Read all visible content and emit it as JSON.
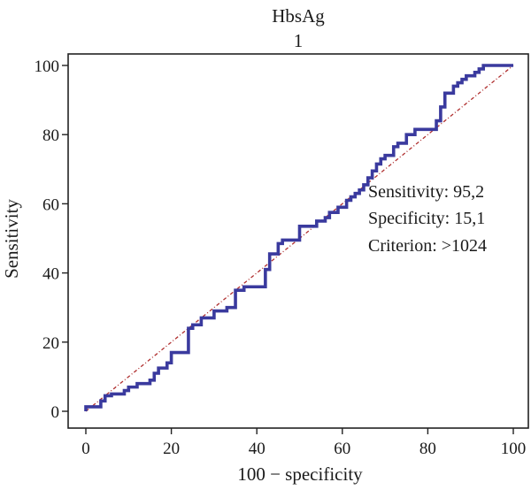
{
  "chart_data": {
    "type": "line",
    "title": "HbsAg",
    "subtitle": "1",
    "xlabel": "100 − specificity",
    "ylabel": "Sensitivity",
    "xlim": [
      0,
      100
    ],
    "ylim": [
      0,
      100
    ],
    "x_ticks": [
      "0",
      "20",
      "40",
      "60",
      "80",
      "100"
    ],
    "y_ticks": [
      "0",
      "20",
      "40",
      "60",
      "80",
      "100"
    ],
    "grid": false,
    "colors": {
      "roc": "#3a3a9e",
      "diagonal": "#b03030",
      "axis": "#222222"
    },
    "series": [
      {
        "kind": "roc-step",
        "points": [
          [
            0,
            0
          ],
          [
            0,
            1.3
          ],
          [
            3.5,
            1.3
          ],
          [
            3.5,
            3
          ],
          [
            4.5,
            3
          ],
          [
            4.5,
            4.5
          ],
          [
            6,
            4.5
          ],
          [
            6,
            5
          ],
          [
            9,
            5
          ],
          [
            9,
            6
          ],
          [
            10,
            6
          ],
          [
            10,
            7
          ],
          [
            12,
            7
          ],
          [
            12,
            8
          ],
          [
            15,
            8
          ],
          [
            15,
            9
          ],
          [
            16,
            9
          ],
          [
            16,
            11
          ],
          [
            17,
            11
          ],
          [
            17,
            12.5
          ],
          [
            19,
            12.5
          ],
          [
            19,
            14
          ],
          [
            20,
            14
          ],
          [
            20,
            17
          ],
          [
            24,
            17
          ],
          [
            24,
            24
          ],
          [
            25,
            24
          ],
          [
            25,
            25
          ],
          [
            27,
            25
          ],
          [
            27,
            27
          ],
          [
            30,
            27
          ],
          [
            30,
            29
          ],
          [
            33,
            29
          ],
          [
            33,
            30
          ],
          [
            35,
            30
          ],
          [
            35,
            35
          ],
          [
            37,
            35
          ],
          [
            37,
            36
          ],
          [
            42,
            36
          ],
          [
            42,
            41
          ],
          [
            43,
            41
          ],
          [
            43,
            45.5
          ],
          [
            45,
            45.5
          ],
          [
            45,
            48.5
          ],
          [
            46,
            48.5
          ],
          [
            46,
            49.5
          ],
          [
            50,
            49.5
          ],
          [
            50,
            53.5
          ],
          [
            54,
            53.5
          ],
          [
            54,
            55
          ],
          [
            56,
            55
          ],
          [
            56,
            56
          ],
          [
            57,
            56
          ],
          [
            57,
            57.5
          ],
          [
            59,
            57.5
          ],
          [
            59,
            59
          ],
          [
            61,
            59
          ],
          [
            61,
            61
          ],
          [
            62,
            61
          ],
          [
            62,
            62
          ],
          [
            63,
            62
          ],
          [
            63,
            63
          ],
          [
            64,
            63
          ],
          [
            64,
            64
          ],
          [
            65,
            64
          ],
          [
            65,
            65.5
          ],
          [
            66,
            65.5
          ],
          [
            66,
            67.5
          ],
          [
            67,
            67.5
          ],
          [
            67,
            69.5
          ],
          [
            68,
            69.5
          ],
          [
            68,
            71.5
          ],
          [
            69,
            71.5
          ],
          [
            69,
            73
          ],
          [
            70,
            73
          ],
          [
            70,
            74
          ],
          [
            72,
            74
          ],
          [
            72,
            76.5
          ],
          [
            73,
            76.5
          ],
          [
            73,
            77.5
          ],
          [
            75,
            77.5
          ],
          [
            75,
            80
          ],
          [
            77,
            80
          ],
          [
            77,
            81.5
          ],
          [
            82,
            81.5
          ],
          [
            82,
            84
          ],
          [
            83,
            84
          ],
          [
            83,
            88
          ],
          [
            84,
            88
          ],
          [
            84,
            92
          ],
          [
            86,
            92
          ],
          [
            86,
            94
          ],
          [
            87,
            94
          ],
          [
            87,
            95
          ],
          [
            88,
            95
          ],
          [
            88,
            96
          ],
          [
            89,
            96
          ],
          [
            89,
            97
          ],
          [
            91,
            97
          ],
          [
            91,
            98
          ],
          [
            92,
            98
          ],
          [
            92,
            99
          ],
          [
            93,
            99
          ],
          [
            93,
            100
          ],
          [
            100,
            100
          ]
        ]
      },
      {
        "kind": "reference-diagonal",
        "points": [
          [
            0,
            0
          ],
          [
            100,
            100
          ]
        ]
      }
    ],
    "annotations": [
      "Sensitivity: 95,2",
      "Specificity: 15,1",
      "Criterion: >1024"
    ]
  }
}
